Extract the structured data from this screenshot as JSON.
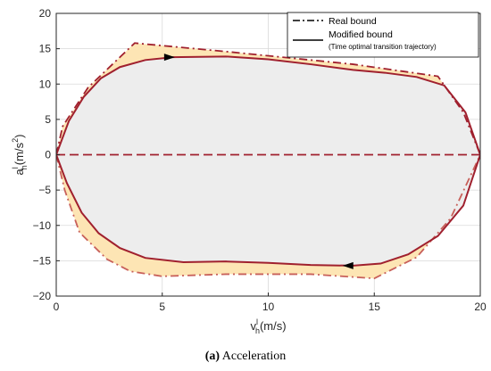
{
  "chart_data": {
    "type": "line",
    "xlabel": {
      "main": "v",
      "sub": "h",
      "sup": "l",
      "unit": "(m/s)"
    },
    "ylabel": {
      "main": "a",
      "sub": "h",
      "sup": "l",
      "unit": "(m/s",
      "unit_sup": "2",
      "unit_close": ")"
    },
    "xlim": [
      0,
      20
    ],
    "ylim": [
      -20,
      20
    ],
    "xticks": [
      0,
      5,
      10,
      15,
      20
    ],
    "yticks": [
      -20,
      -15,
      -10,
      -5,
      0,
      5,
      10,
      15,
      20
    ],
    "grid": true,
    "legend": {
      "placement": "top-right",
      "entries": [
        {
          "name": "Real bound",
          "style": "dashdot"
        },
        {
          "name": "Modified bound",
          "note": "(Time optimal transition trajectory)",
          "style": "solid"
        }
      ]
    },
    "series": [
      {
        "name": "Real bound",
        "style": "dashdot",
        "color": "#a0202e",
        "upper": [
          [
            0,
            0
          ],
          [
            0.3,
            4
          ],
          [
            1.5,
            9.5
          ],
          [
            3.7,
            15.8
          ],
          [
            8,
            14.6
          ],
          [
            14,
            12.8
          ],
          [
            18,
            11.1
          ],
          [
            19.2,
            6
          ],
          [
            20,
            0
          ]
        ],
        "lower": [
          [
            0,
            0
          ],
          [
            0.4,
            -5
          ],
          [
            1.1,
            -11
          ],
          [
            2.4,
            -14.8
          ],
          [
            3.5,
            -16.5
          ],
          [
            5,
            -17.2
          ],
          [
            8,
            -16.9
          ],
          [
            12,
            -16.9
          ],
          [
            15,
            -17.5
          ],
          [
            17,
            -14.5
          ],
          [
            18.6,
            -9
          ],
          [
            20,
            0
          ]
        ]
      },
      {
        "name": "Modified bound",
        "style": "solid",
        "color": "#a0202e",
        "upper": [
          [
            0,
            0
          ],
          [
            0.6,
            4.8
          ],
          [
            1.3,
            8.2
          ],
          [
            2.1,
            10.8
          ],
          [
            3.0,
            12.4
          ],
          [
            4.2,
            13.4
          ],
          [
            5.5,
            13.8
          ],
          [
            8,
            13.9
          ],
          [
            10,
            13.5
          ],
          [
            12,
            12.8
          ],
          [
            14,
            12.0
          ],
          [
            15.5,
            11.6
          ],
          [
            17,
            11.0
          ],
          [
            18.3,
            9.8
          ],
          [
            19.3,
            6.0
          ],
          [
            20,
            0
          ]
        ],
        "lower": [
          [
            0,
            0
          ],
          [
            0.5,
            -4
          ],
          [
            1.2,
            -8.2
          ],
          [
            2.0,
            -11.1
          ],
          [
            3.0,
            -13.2
          ],
          [
            4.2,
            -14.6
          ],
          [
            6,
            -15.2
          ],
          [
            8,
            -15.1
          ],
          [
            10,
            -15.3
          ],
          [
            12,
            -15.6
          ],
          [
            14,
            -15.7
          ],
          [
            15.3,
            -15.4
          ],
          [
            16.6,
            -14.1
          ],
          [
            18.0,
            -11.5
          ],
          [
            19.2,
            -7.2
          ],
          [
            20,
            0
          ]
        ]
      }
    ],
    "zero_line": {
      "y": 0,
      "style": "dashed",
      "color": "#a0202e"
    },
    "arrows": [
      {
        "at": [
          5.3,
          13.8
        ],
        "direction": "right"
      },
      {
        "at": [
          13.8,
          -15.7
        ],
        "direction": "left"
      }
    ],
    "colors": {
      "inner_fill": "#ededed",
      "margin_fill": "#fde5b4",
      "curve": "#a0202e",
      "axis": "#262626",
      "grid": "#d9d9d9"
    }
  },
  "caption": {
    "label": "(a)",
    "text": "Acceleration"
  }
}
